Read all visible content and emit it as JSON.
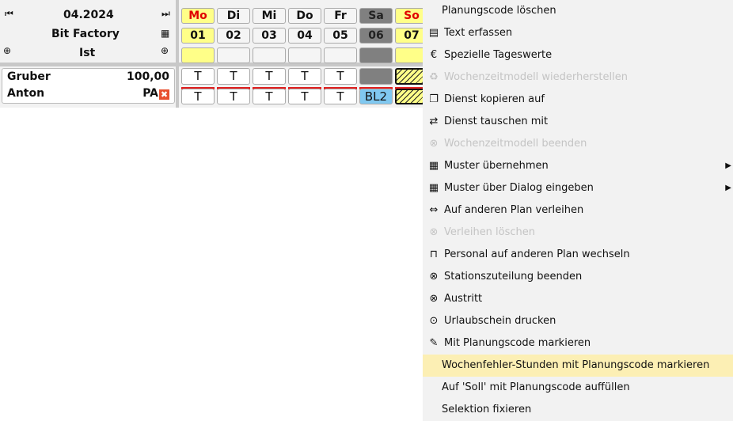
{
  "header": {
    "month": "04.2024",
    "plan": "Bit Factory",
    "mode": "Ist"
  },
  "days": [
    {
      "name": "Mo",
      "num": "01",
      "type": "holiday"
    },
    {
      "name": "Di",
      "num": "02",
      "type": "work"
    },
    {
      "name": "Mi",
      "num": "03",
      "type": "work"
    },
    {
      "name": "Do",
      "num": "04",
      "type": "work"
    },
    {
      "name": "Fr",
      "num": "05",
      "type": "work"
    },
    {
      "name": "Sa",
      "num": "06",
      "type": "weekend"
    },
    {
      "name": "So",
      "num": "07",
      "type": "holiday"
    }
  ],
  "employee": {
    "last_name": "Gruber",
    "first_name": "Anton",
    "value": "100,00",
    "code": "PA",
    "row1": [
      "T",
      "T",
      "T",
      "T",
      "T",
      "",
      ""
    ],
    "row2": [
      "T",
      "T",
      "T",
      "T",
      "T",
      "BL2",
      ""
    ]
  },
  "colors": {
    "holiday": "#ffff88",
    "weekend": "#808080",
    "highlight": "#fcefb4",
    "red_text": "#e00000",
    "bl2": "#80c8f0"
  },
  "menu": [
    {
      "label": "Planungscode löschen",
      "icon": "",
      "enabled": true
    },
    {
      "label": "Text erfassen",
      "icon": "document-icon",
      "enabled": true
    },
    {
      "label": "Spezielle Tageswerte",
      "icon": "euro-icon",
      "enabled": true
    },
    {
      "label": "Wochenzeitmodell wiederherstellen",
      "icon": "recycle-icon",
      "enabled": false
    },
    {
      "label": "Dienst kopieren auf",
      "icon": "copy-icon",
      "enabled": true
    },
    {
      "label": "Dienst tauschen mit",
      "icon": "swap-icon",
      "enabled": true
    },
    {
      "label": "Wochenzeitmodell beenden",
      "icon": "close-circle-icon",
      "enabled": false
    },
    {
      "label": "Muster übernehmen",
      "icon": "grid-add-icon",
      "enabled": true,
      "submenu": true
    },
    {
      "label": "Muster über Dialog eingeben",
      "icon": "grid-add-icon",
      "enabled": true,
      "submenu": true
    },
    {
      "label": "Auf anderen Plan verleihen",
      "icon": "arrows-horizontal-icon",
      "enabled": true
    },
    {
      "label": "Verleihen löschen",
      "icon": "close-circle-icon",
      "enabled": false
    },
    {
      "label": "Personal auf anderen Plan wechseln",
      "icon": "door-icon",
      "enabled": true
    },
    {
      "label": "Stationszuteilung beenden",
      "icon": "close-circle-icon",
      "enabled": true
    },
    {
      "label": "Austritt",
      "icon": "close-circle-icon",
      "enabled": true
    },
    {
      "label": "Urlaubschein drucken",
      "icon": "print-icon",
      "enabled": true
    },
    {
      "label": "Mit Planungscode markieren",
      "icon": "brush-icon",
      "enabled": true
    },
    {
      "label": "Wochenfehler-Stunden mit Planungscode markieren",
      "icon": "",
      "enabled": true,
      "highlighted": true
    },
    {
      "label": "Auf 'Soll' mit Planungscode auffüllen",
      "icon": "",
      "enabled": true
    },
    {
      "label": "Selektion fixieren",
      "icon": "",
      "enabled": true
    }
  ]
}
